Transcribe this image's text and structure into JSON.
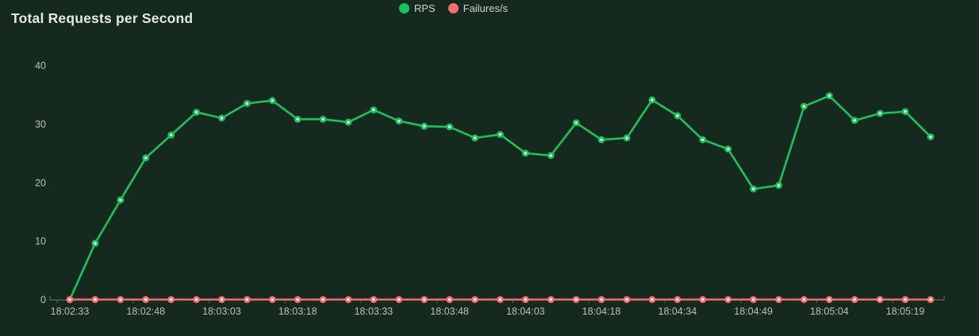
{
  "page": {
    "title": "Total Requests per Second",
    "background_color": "#16291f"
  },
  "legend": {
    "items": [
      {
        "label": "RPS",
        "color": "#19c25b"
      },
      {
        "label": "Failures/s",
        "color": "#f56e6e"
      }
    ]
  },
  "chart_data": {
    "type": "line",
    "title": "Total Requests per Second",
    "xlabel": "",
    "ylabel": "",
    "ylim": [
      0,
      40
    ],
    "grid": false,
    "legend_position": "top-center",
    "axis_color": "#7f8c84",
    "tick_label_color": "#b7c1ba",
    "marker_center_color": "#ffffff",
    "x": [
      "18:02:33",
      "18:02:38",
      "18:02:43",
      "18:02:48",
      "18:02:53",
      "18:02:58",
      "18:03:03",
      "18:03:08",
      "18:03:13",
      "18:03:18",
      "18:03:23",
      "18:03:28",
      "18:03:33",
      "18:03:38",
      "18:03:43",
      "18:03:48",
      "18:03:53",
      "18:03:58",
      "18:04:03",
      "18:04:08",
      "18:04:13",
      "18:04:18",
      "18:04:24",
      "18:04:29",
      "18:04:34",
      "18:04:39",
      "18:04:44",
      "18:04:49",
      "18:04:54",
      "18:04:59",
      "18:05:04",
      "18:05:09",
      "18:05:14",
      "18:05:19",
      "18:05:24"
    ],
    "xtick_labels": [
      "18:02:33",
      "18:02:48",
      "18:03:03",
      "18:03:18",
      "18:03:33",
      "18:03:48",
      "18:04:03",
      "18:04:18",
      "18:04:34",
      "18:04:49",
      "18:05:04",
      "18:05:19"
    ],
    "ytick_labels": [
      "0",
      "10",
      "20",
      "30",
      "40"
    ],
    "yticks": [
      0,
      10,
      20,
      30,
      40
    ],
    "series": [
      {
        "name": "RPS",
        "color": "#19c25b",
        "values": [
          0,
          9.6,
          17,
          24.2,
          28.1,
          32,
          31,
          33.5,
          34,
          30.8,
          30.8,
          30.3,
          32.4,
          30.5,
          29.6,
          29.5,
          27.6,
          28.2,
          25,
          24.6,
          30.2,
          27.3,
          27.6,
          34.1,
          31.4,
          27.3,
          25.7,
          18.9,
          19.5,
          33,
          34.8,
          30.6,
          31.8,
          32.1,
          27.8
        ]
      },
      {
        "name": "Failures/s",
        "color": "#f56e6e",
        "values": [
          0,
          0,
          0,
          0,
          0,
          0,
          0,
          0,
          0,
          0,
          0,
          0,
          0,
          0,
          0,
          0,
          0,
          0,
          0,
          0,
          0,
          0,
          0,
          0,
          0,
          0,
          0,
          0,
          0,
          0,
          0,
          0,
          0,
          0,
          0
        ]
      }
    ]
  }
}
